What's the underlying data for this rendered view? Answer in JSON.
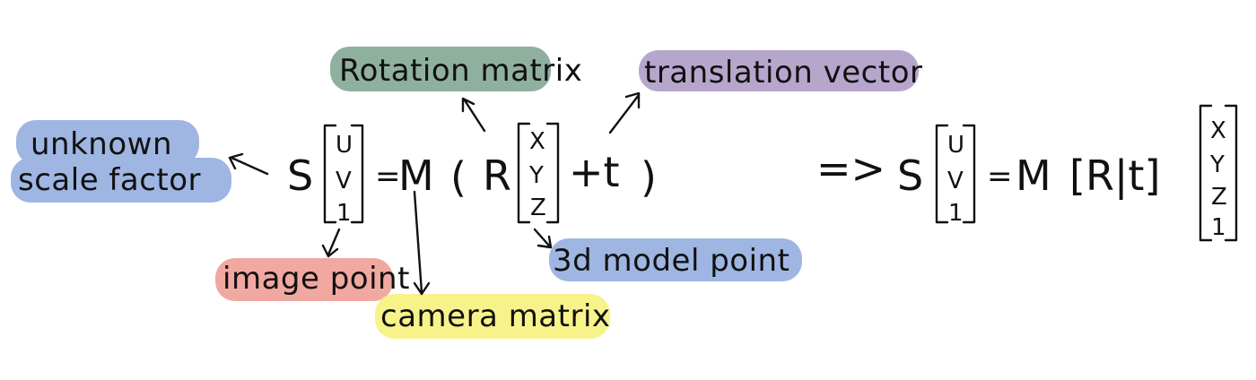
{
  "labels": {
    "rotation": "Rotation matrix",
    "translation": "translation vector",
    "scale_line1": "unknown",
    "scale_line2": "scale factor",
    "image_point": "image point",
    "camera_matrix": "camera matrix",
    "model_point": "3d model point"
  },
  "equation": {
    "s": "S",
    "u": "U",
    "v": "V",
    "one": "1",
    "equals": "=",
    "M": "M",
    "open_paren": "(",
    "close_paren": ")",
    "R": "R",
    "x": "X",
    "y": "Y",
    "z": "Z",
    "plus_t": "+t",
    "implies": "=>",
    "Rt": "[R|t]"
  },
  "colors": {
    "rotation": "#8fb09f",
    "translation": "#b7a6cc",
    "scale": "#9fb6e2",
    "image_point": "#f1a8a0",
    "camera_matrix": "#f7f38a",
    "model_point": "#9fb6e2"
  }
}
